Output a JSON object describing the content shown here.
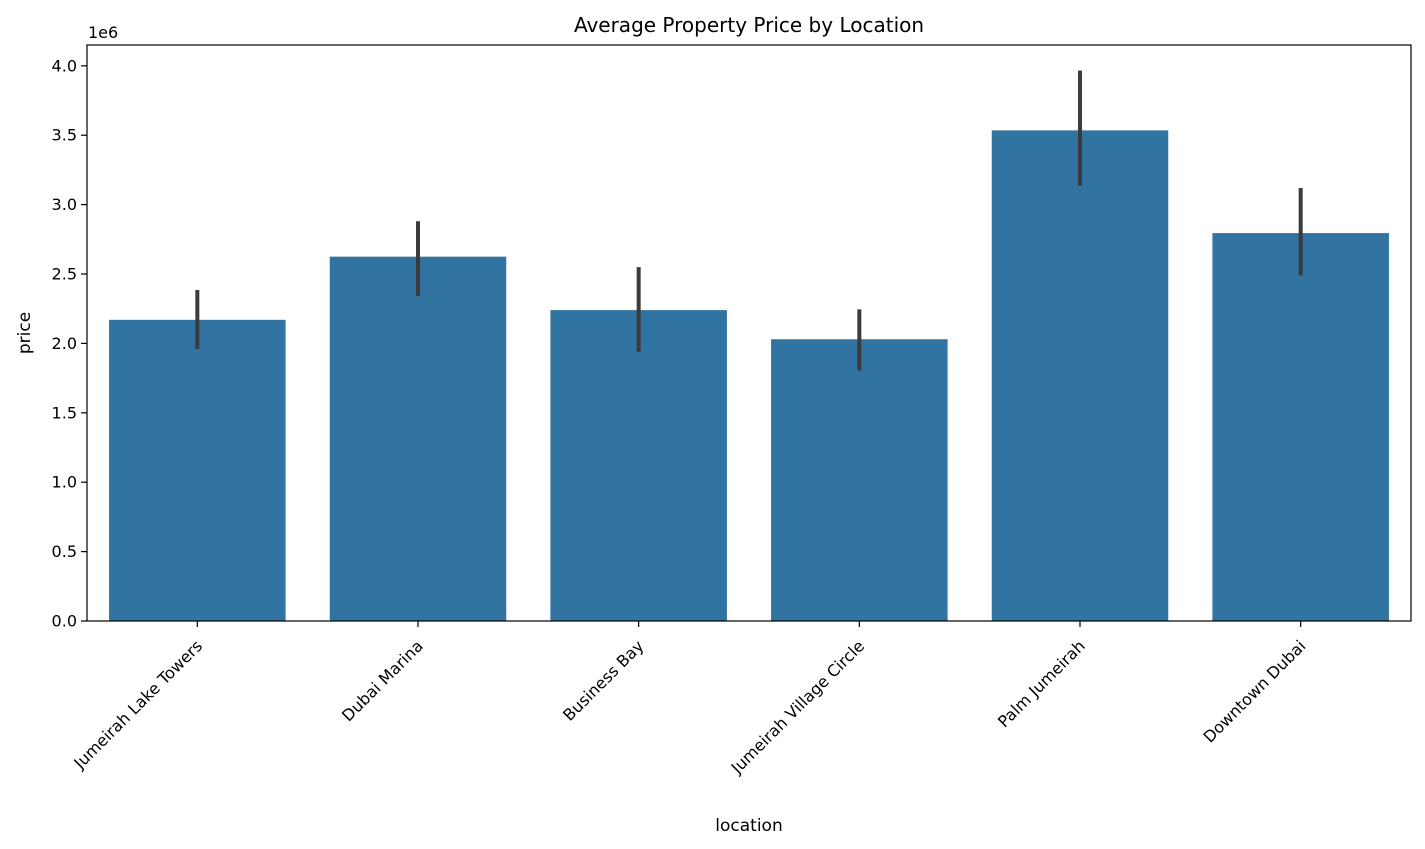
{
  "chart_data": {
    "type": "bar",
    "title": "Average Property Price by Location",
    "xlabel": "location",
    "ylabel": "price",
    "y_offset_label": "1e6",
    "categories": [
      "Jumeirah Lake Towers",
      "Dubai Marina",
      "Business Bay",
      "Jumeirah Village Circle",
      "Palm Jumeirah",
      "Downtown Dubai"
    ],
    "values": [
      2170000,
      2625000,
      2240000,
      2030000,
      3535000,
      2795000
    ],
    "error_low": [
      1960000,
      2340000,
      1940000,
      1805000,
      3135000,
      2490000
    ],
    "error_high": [
      2385000,
      2880000,
      2550000,
      2245000,
      3965000,
      3120000
    ],
    "ylim": [
      0,
      4150000
    ],
    "yticks": [
      0,
      500000,
      1000000,
      1500000,
      2000000,
      2500000,
      3000000,
      3500000,
      4000000
    ],
    "ytick_labels": [
      "0.0",
      "0.5",
      "1.0",
      "1.5",
      "2.0",
      "2.5",
      "3.0",
      "3.5",
      "4.0"
    ],
    "grid": false,
    "legend": "none",
    "bar_color": "#3274a1",
    "error_color": "#3b3b3b"
  }
}
